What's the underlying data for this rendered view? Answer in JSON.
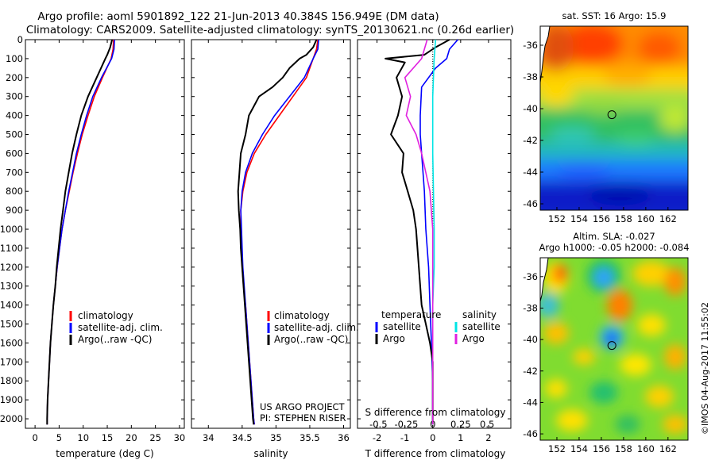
{
  "header": {
    "title_line1": "Argo profile: aoml 5901892_122 21-Jun-2013 40.384S 156.949E (DM data)",
    "title_line2": "Climatology: CARS2009. Satellite-adjusted climatology: synTS_20130621.nc (0.26d earlier)"
  },
  "colors": {
    "climatology": "#ff0000",
    "satellite": "#0000ff",
    "argo": "#000000",
    "sat_salinity": "#00e5e5",
    "argo_salinity": "#e020e0"
  },
  "chart_data": [
    {
      "type": "line",
      "panel": "temperature",
      "xlabel": "temperature (deg C)",
      "xlim": [
        -2,
        31
      ],
      "ylim": [
        0,
        2050
      ],
      "y_inverted": true,
      "xticks": [
        0,
        5,
        10,
        15,
        20,
        25,
        30
      ],
      "yticks": [
        0,
        100,
        200,
        300,
        400,
        500,
        600,
        700,
        800,
        900,
        1000,
        1100,
        1200,
        1300,
        1400,
        1500,
        1600,
        1700,
        1800,
        1900,
        2000
      ],
      "legend": {
        "items": [
          "climatology",
          "satellite-adj. clim.",
          "Argo(..raw -QC)"
        ],
        "placement": "lower-middle"
      },
      "series": [
        {
          "name": "climatology",
          "color": "#ff0000",
          "points": [
            [
              16.3,
              0
            ],
            [
              16.2,
              50
            ],
            [
              15.8,
              100
            ],
            [
              14.0,
              200
            ],
            [
              12.3,
              300
            ],
            [
              11.0,
              400
            ],
            [
              9.8,
              500
            ],
            [
              8.8,
              600
            ],
            [
              7.9,
              700
            ],
            [
              7.1,
              800
            ],
            [
              6.3,
              900
            ],
            [
              5.6,
              1000
            ],
            [
              5.1,
              1100
            ],
            [
              4.6,
              1200
            ],
            [
              4.2,
              1300
            ],
            [
              3.8,
              1400
            ],
            [
              3.5,
              1500
            ],
            [
              3.2,
              1600
            ],
            [
              3.0,
              1700
            ],
            [
              2.8,
              1800
            ],
            [
              2.6,
              1900
            ],
            [
              2.5,
              2000
            ],
            [
              2.5,
              2030
            ]
          ]
        },
        {
          "name": "satellite-adj. clim.",
          "color": "#0000ff",
          "points": [
            [
              16.5,
              0
            ],
            [
              16.4,
              50
            ],
            [
              15.9,
              100
            ],
            [
              13.8,
              200
            ],
            [
              12.0,
              300
            ],
            [
              10.7,
              400
            ],
            [
              9.6,
              500
            ],
            [
              8.6,
              600
            ],
            [
              7.8,
              700
            ],
            [
              7.0,
              800
            ],
            [
              6.3,
              900
            ],
            [
              5.6,
              1000
            ],
            [
              5.1,
              1100
            ],
            [
              4.6,
              1200
            ],
            [
              4.2,
              1300
            ],
            [
              3.8,
              1400
            ],
            [
              3.5,
              1500
            ],
            [
              3.2,
              1600
            ],
            [
              3.0,
              1700
            ],
            [
              2.8,
              1800
            ],
            [
              2.6,
              1900
            ],
            [
              2.5,
              2000
            ],
            [
              2.5,
              2030
            ]
          ]
        },
        {
          "name": "Argo(..raw -QC)",
          "color": "#000000",
          "points": [
            [
              16.0,
              0
            ],
            [
              15.6,
              40
            ],
            [
              15.0,
              80
            ],
            [
              14.6,
              100
            ],
            [
              12.8,
              200
            ],
            [
              11.0,
              300
            ],
            [
              9.6,
              400
            ],
            [
              8.6,
              500
            ],
            [
              7.7,
              600
            ],
            [
              7.0,
              700
            ],
            [
              6.3,
              800
            ],
            [
              5.8,
              900
            ],
            [
              5.3,
              1000
            ],
            [
              4.9,
              1100
            ],
            [
              4.5,
              1200
            ],
            [
              4.2,
              1300
            ],
            [
              3.8,
              1400
            ],
            [
              3.5,
              1500
            ],
            [
              3.2,
              1600
            ],
            [
              3.0,
              1700
            ],
            [
              2.8,
              1800
            ],
            [
              2.6,
              1900
            ],
            [
              2.5,
              2000
            ],
            [
              2.5,
              2030
            ]
          ]
        }
      ]
    },
    {
      "type": "line",
      "panel": "salinity",
      "xlabel": "salinity",
      "xlim": [
        33.75,
        36.1
      ],
      "ylim": [
        0,
        2050
      ],
      "y_inverted": true,
      "xticks": [
        34,
        34.5,
        35,
        35.5,
        36
      ],
      "legend": {
        "items": [
          "climatology",
          "satellite-adj. clim.",
          "Argo(..raw -QC)"
        ],
        "placement": "lower-right"
      },
      "annotation": [
        "US ARGO PROJECT",
        "PI: STEPHEN RISER"
      ],
      "series": [
        {
          "name": "climatology",
          "color": "#ff0000",
          "points": [
            [
              35.62,
              0
            ],
            [
              35.6,
              50
            ],
            [
              35.55,
              100
            ],
            [
              35.45,
              200
            ],
            [
              35.25,
              300
            ],
            [
              35.05,
              400
            ],
            [
              34.85,
              500
            ],
            [
              34.68,
              600
            ],
            [
              34.57,
              700
            ],
            [
              34.51,
              800
            ],
            [
              34.48,
              900
            ],
            [
              34.48,
              1000
            ],
            [
              34.49,
              1100
            ],
            [
              34.5,
              1200
            ],
            [
              34.52,
              1300
            ],
            [
              34.55,
              1400
            ],
            [
              34.57,
              1500
            ],
            [
              34.59,
              1600
            ],
            [
              34.61,
              1700
            ],
            [
              34.63,
              1800
            ],
            [
              34.65,
              1900
            ],
            [
              34.67,
              2000
            ],
            [
              34.68,
              2030
            ]
          ]
        },
        {
          "name": "satellite-adj. clim.",
          "color": "#0000ff",
          "points": [
            [
              35.63,
              0
            ],
            [
              35.62,
              50
            ],
            [
              35.55,
              100
            ],
            [
              35.42,
              200
            ],
            [
              35.2,
              300
            ],
            [
              34.98,
              400
            ],
            [
              34.8,
              500
            ],
            [
              34.65,
              600
            ],
            [
              34.55,
              700
            ],
            [
              34.5,
              800
            ],
            [
              34.48,
              900
            ],
            [
              34.49,
              1000
            ],
            [
              34.5,
              1100
            ],
            [
              34.51,
              1200
            ],
            [
              34.53,
              1300
            ],
            [
              34.55,
              1400
            ],
            [
              34.57,
              1500
            ],
            [
              34.59,
              1600
            ],
            [
              34.61,
              1700
            ],
            [
              34.63,
              1800
            ],
            [
              34.65,
              1900
            ],
            [
              34.67,
              2000
            ],
            [
              34.68,
              2030
            ]
          ]
        },
        {
          "name": "Argo(..raw -QC)",
          "color": "#000000",
          "points": [
            [
              35.6,
              0
            ],
            [
              35.55,
              40
            ],
            [
              35.45,
              80
            ],
            [
              35.35,
              100
            ],
            [
              35.2,
              150
            ],
            [
              35.1,
              200
            ],
            [
              34.95,
              250
            ],
            [
              34.75,
              300
            ],
            [
              34.6,
              400
            ],
            [
              34.55,
              500
            ],
            [
              34.48,
              600
            ],
            [
              34.46,
              700
            ],
            [
              34.44,
              800
            ],
            [
              34.45,
              900
            ],
            [
              34.47,
              1000
            ],
            [
              34.48,
              1100
            ],
            [
              34.5,
              1200
            ],
            [
              34.52,
              1300
            ],
            [
              34.54,
              1400
            ],
            [
              34.56,
              1500
            ],
            [
              34.58,
              1600
            ],
            [
              34.6,
              1700
            ],
            [
              34.62,
              1800
            ],
            [
              34.64,
              1900
            ],
            [
              34.66,
              2000
            ],
            [
              34.67,
              2030
            ]
          ]
        }
      ]
    },
    {
      "type": "line",
      "panel": "difference",
      "xlabel": "T difference from climatology",
      "top_axis_label": "S difference from climatology",
      "xlim": [
        -2.7,
        2.8
      ],
      "ylim": [
        0,
        2050
      ],
      "y_inverted": true,
      "xticks": [
        -2,
        -1,
        0,
        1,
        2
      ],
      "top_ticks": [
        {
          "label": "-0.5",
          "at_t": -1.95
        },
        {
          "label": "-0.25",
          "at_t": -0.95
        },
        {
          "label": "0",
          "at_t": 0
        },
        {
          "label": "0.25",
          "at_t": 1.0
        },
        {
          "label": "0.5",
          "at_t": 1.95
        }
      ],
      "legend": {
        "groups": [
          "temperature",
          "salinity"
        ],
        "items": [
          "satellite",
          "Argo",
          "satellite",
          "Argo"
        ],
        "placement": "lower"
      },
      "series": [
        {
          "name": "temperature satellite",
          "color": "#0000ff",
          "points": [
            [
              0.9,
              0
            ],
            [
              0.6,
              50
            ],
            [
              0.5,
              100
            ],
            [
              0.1,
              150
            ],
            [
              -0.4,
              250
            ],
            [
              -0.45,
              400
            ],
            [
              -0.45,
              500
            ],
            [
              -0.4,
              600
            ],
            [
              -0.3,
              800
            ],
            [
              -0.25,
              1000
            ],
            [
              -0.15,
              1200
            ],
            [
              -0.1,
              1400
            ],
            [
              -0.05,
              1600
            ],
            [
              0,
              1800
            ],
            [
              0,
              2030
            ]
          ]
        },
        {
          "name": "temperature Argo",
          "color": "#000000",
          "points": [
            [
              0.6,
              0
            ],
            [
              0.1,
              40
            ],
            [
              -0.3,
              80
            ],
            [
              -1.7,
              100
            ],
            [
              -1.0,
              120
            ],
            [
              -1.3,
              200
            ],
            [
              -1.1,
              300
            ],
            [
              -1.25,
              400
            ],
            [
              -1.5,
              500
            ],
            [
              -1.05,
              600
            ],
            [
              -1.1,
              700
            ],
            [
              -0.9,
              800
            ],
            [
              -0.7,
              900
            ],
            [
              -0.6,
              1000
            ],
            [
              -0.5,
              1200
            ],
            [
              -0.4,
              1400
            ],
            [
              -0.25,
              1500
            ],
            [
              -0.1,
              1600
            ],
            [
              0,
              1700
            ],
            [
              0,
              2030
            ]
          ]
        },
        {
          "name": "salinity satellite",
          "color": "#00e5e5",
          "points": [
            [
              0.1,
              0
            ],
            [
              0.05,
              100
            ],
            [
              0.0,
              300
            ],
            [
              0.0,
              600
            ],
            [
              0.05,
              1000
            ],
            [
              0.05,
              1200
            ],
            [
              0.0,
              1400
            ],
            [
              0.0,
              2030
            ]
          ]
        },
        {
          "name": "salinity Argo",
          "color": "#e020e0",
          "points": [
            [
              -0.2,
              0
            ],
            [
              -0.4,
              100
            ],
            [
              -1.0,
              200
            ],
            [
              -0.8,
              300
            ],
            [
              -0.95,
              400
            ],
            [
              -0.6,
              500
            ],
            [
              -0.4,
              600
            ],
            [
              -0.1,
              800
            ],
            [
              0.0,
              1000
            ],
            [
              0.0,
              1400
            ],
            [
              0.0,
              2030
            ]
          ]
        }
      ]
    },
    {
      "type": "heatmap",
      "panel": "sst_map",
      "title": "sat. SST: 16 Argo: 15.9",
      "xlim": [
        150.5,
        163.8
      ],
      "ylim": [
        -46.4,
        -34.8
      ],
      "xticks": [
        152,
        154,
        156,
        158,
        160,
        162
      ],
      "yticks": [
        -36,
        -38,
        -40,
        -42,
        -44,
        -46
      ],
      "argo_position": {
        "lon": 156.95,
        "lat": -40.38
      }
    },
    {
      "type": "heatmap",
      "panel": "sla_map",
      "title_line1": "Altim. SLA: -0.027",
      "title_line2": "Argo h1000: -0.05 h2000: -0.084",
      "xlim": [
        150.5,
        163.8
      ],
      "ylim": [
        -46.4,
        -34.8
      ],
      "xticks": [
        152,
        154,
        156,
        158,
        160,
        162
      ],
      "yticks": [
        -36,
        -38,
        -40,
        -42,
        -44,
        -46
      ],
      "argo_position": {
        "lon": 156.95,
        "lat": -40.38
      }
    }
  ],
  "footer": {
    "credit": "©IMOS 04-Aug-2017 11:55:02"
  }
}
